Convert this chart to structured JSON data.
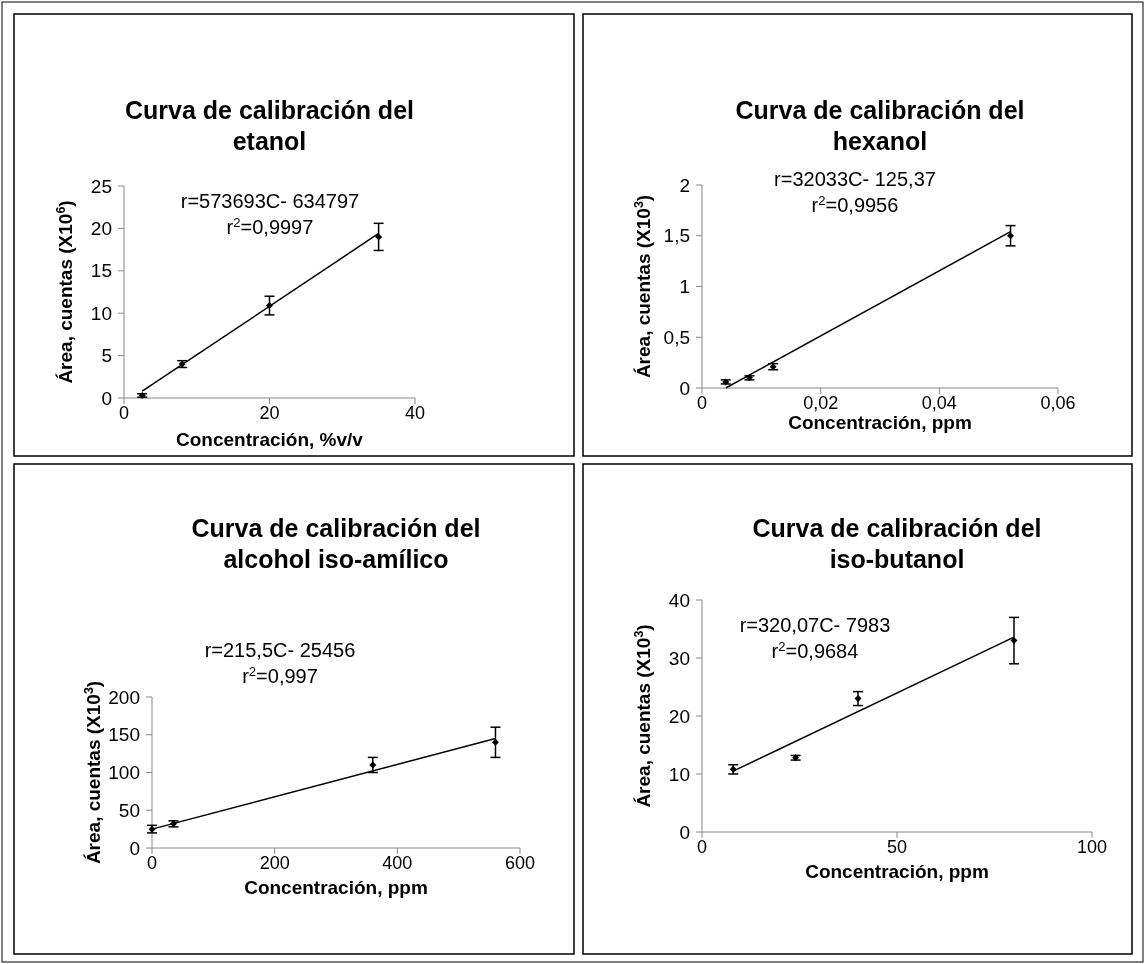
{
  "chart_data": [
    {
      "type": "scatter",
      "title": "Curva de calibración del etanol",
      "xlabel": "Concentración, %v/v",
      "ylabel": "Área, cuentas (X10$^{6}$)",
      "annotations": [
        "r=573693C- 634797",
        "r$^{2}$=0,9997"
      ],
      "xlim": [
        0,
        40
      ],
      "xticks": [
        0,
        20,
        40
      ],
      "ylim": [
        0,
        25
      ],
      "yticks": [
        0,
        5,
        10,
        15,
        20,
        25
      ],
      "grid": false,
      "series": [
        {
          "marker": "diamond",
          "color": "#000000",
          "x": [
            2.5,
            8,
            20,
            35
          ],
          "values": [
            0.3,
            4.0,
            10.9,
            19.0
          ],
          "errors": [
            0.2,
            0.4,
            1.1,
            1.6
          ]
        },
        {
          "type": "line",
          "color": "#000000",
          "x": [
            2.5,
            35
          ],
          "values": [
            0.8,
            19.4
          ]
        }
      ]
    },
    {
      "type": "scatter",
      "title": "Curva de calibración del hexanol",
      "xlabel": "Concentración, ppm",
      "ylabel": "Área, cuentas (X10$^{3}$)",
      "annotations": [
        "r=32033C- 125,37",
        "r$^{2}$=0,9956"
      ],
      "xlim": [
        0,
        0.06
      ],
      "xticks": [
        0,
        {
          "value": 0.02,
          "label": "0,02"
        },
        {
          "value": 0.04,
          "label": "0,04"
        },
        {
          "value": 0.06,
          "label": "0,06"
        }
      ],
      "ylim": [
        0,
        2
      ],
      "yticks": [
        0,
        {
          "value": 0.5,
          "label": "0,5"
        },
        1,
        {
          "value": 1.5,
          "label": "1,5"
        },
        2
      ],
      "grid": false,
      "series": [
        {
          "marker": "diamond",
          "color": "#000000",
          "x": [
            0.004,
            0.008,
            0.012,
            0.052
          ],
          "values": [
            0.06,
            0.1,
            0.21,
            1.5
          ],
          "errors": [
            0.02,
            0.02,
            0.03,
            0.1
          ]
        },
        {
          "type": "line",
          "color": "#000000",
          "x": [
            0.004,
            0.052
          ],
          "values": [
            0.0,
            1.54
          ]
        }
      ]
    },
    {
      "type": "scatter",
      "title": "Curva de calibración del alcohol iso-amílico",
      "xlabel": "Concentración, ppm",
      "ylabel": "Área, cuentas (X10$^{3}$)",
      "annotations": [
        "r=215,5C- 25456",
        "r$^{2}$=0,997"
      ],
      "xlim": [
        0,
        600
      ],
      "xticks": [
        0,
        200,
        400,
        600
      ],
      "ylim": [
        0,
        200
      ],
      "yticks": [
        0,
        50,
        100,
        150,
        200
      ],
      "grid": false,
      "series": [
        {
          "marker": "diamond",
          "color": "#000000",
          "x": [
            0,
            35,
            360,
            560
          ],
          "values": [
            25,
            32,
            110,
            140
          ],
          "errors": [
            5,
            4,
            10,
            20
          ]
        },
        {
          "type": "line",
          "color": "#000000",
          "x": [
            0,
            560
          ],
          "values": [
            25,
            145
          ]
        }
      ]
    },
    {
      "type": "scatter",
      "title": "Curva de calibración del iso-butanol",
      "xlabel": "Concentración, ppm",
      "ylabel": "Área, cuentas (X10$^{3}$)",
      "annotations": [
        "r=320,07C- 7983",
        "r$^{2}$=0,9684"
      ],
      "xlim": [
        0,
        100
      ],
      "xticks": [
        0,
        50,
        100
      ],
      "ylim": [
        0,
        40
      ],
      "yticks": [
        0,
        10,
        20,
        30,
        40
      ],
      "grid": false,
      "series": [
        {
          "marker": "diamond",
          "color": "#000000",
          "x": [
            8,
            24,
            40,
            80
          ],
          "values": [
            10.8,
            12.8,
            23,
            33
          ],
          "errors": [
            0.8,
            0.4,
            1.2,
            4
          ]
        },
        {
          "type": "line",
          "color": "#000000",
          "x": [
            8,
            80
          ],
          "values": [
            10.5,
            33.6
          ]
        }
      ]
    }
  ]
}
